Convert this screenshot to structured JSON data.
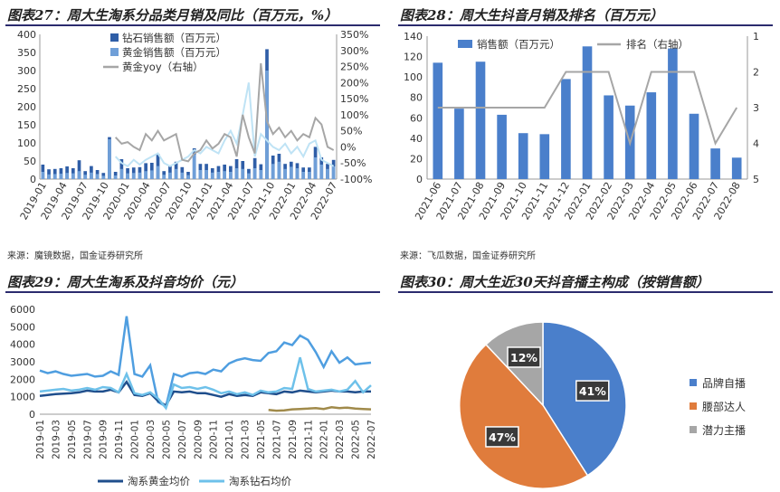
{
  "panels": {
    "p27": {
      "title": "图表27：周大生淘系分品类月销及同比（百万元，%）",
      "source": "来源：魔镜数据，国金证券研究所"
    },
    "p28": {
      "title": "图表28：周大生抖音月销及排名（百万元）",
      "source": "来源：飞瓜数据，国金证券研究所"
    },
    "p29": {
      "title": "图表29：周大生淘系及抖音均价（元）"
    },
    "p30": {
      "title": "图表30：周大生近30天抖音播主构成（按销售额）"
    }
  },
  "chart_data": [
    {
      "id": "p27",
      "type": "bar",
      "x_tick_labels": [
        "2019-01",
        "2019-04",
        "2019-07",
        "2019-10",
        "2020-01",
        "2020-04",
        "2020-07",
        "2020-10",
        "2021-01",
        "2021-04",
        "2021-07",
        "2021-10",
        "2022-01",
        "2022-04",
        "2022-07"
      ],
      "ylim": [
        0,
        400
      ],
      "y_ticks": [
        0,
        50,
        100,
        150,
        200,
        250,
        300,
        350,
        400
      ],
      "y2lim": [
        -100,
        350
      ],
      "y2_ticks": [
        "-100%",
        "-50%",
        "0%",
        "50%",
        "100%",
        "150%",
        "200%",
        "250%",
        "300%",
        "350%"
      ],
      "y2_values": [
        -100,
        -50,
        0,
        50,
        100,
        150,
        200,
        250,
        300,
        350
      ],
      "legend": [
        "钻石销售额（百万元）",
        "黄金销售额（百万元）",
        "黄金yoy（右轴）"
      ],
      "series": [
        {
          "name": "钻石销售额（百万元）",
          "color": "#2f5ea7",
          "values": [
            40,
            27,
            28,
            30,
            35,
            30,
            52,
            22,
            36,
            25,
            17,
            116,
            20,
            55,
            30,
            32,
            33,
            44,
            45,
            70,
            22,
            35,
            48,
            33,
            20,
            85,
            42,
            42,
            30,
            36,
            40,
            36,
            55,
            50,
            28,
            58,
            41,
            359,
            65,
            70,
            42,
            48,
            44,
            32,
            32,
            89,
            60,
            42,
            53
          ]
        },
        {
          "name": "黄金销售额（百万元）",
          "color": "#6f9fd8",
          "values": [
            20,
            13,
            14,
            15,
            17,
            16,
            22,
            12,
            18,
            14,
            9,
            110,
            10,
            28,
            16,
            17,
            18,
            22,
            24,
            36,
            12,
            18,
            28,
            18,
            11,
            68,
            25,
            25,
            18,
            20,
            22,
            20,
            30,
            28,
            16,
            30,
            25,
            300,
            42,
            48,
            28,
            34,
            30,
            20,
            20,
            60,
            40,
            28,
            35
          ]
        },
        {
          "name": "黄金yoy（右轴）",
          "color": "#a6a6a6",
          "axis": "right",
          "start_index": 12,
          "values": [
            30,
            10,
            15,
            0,
            -10,
            40,
            20,
            50,
            20,
            30,
            40,
            -40,
            -45,
            -20,
            -10,
            20,
            -5,
            10,
            40,
            30,
            -30,
            100,
            30,
            -20,
            260,
            80,
            40,
            60,
            30,
            50,
            20,
            40,
            30,
            90,
            70,
            0,
            -10
          ]
        },
        {
          "name": "",
          "color": "#bfe3f5",
          "axis": "right",
          "start_index": 12,
          "values": [
            -30,
            -50,
            -60,
            -40,
            -55,
            -40,
            -30,
            -20,
            -50,
            -60,
            -50,
            -40,
            -30,
            -10,
            -20,
            0,
            -10,
            -20,
            20,
            50,
            10,
            100,
            200,
            -30,
            40,
            20,
            0,
            -10,
            10,
            -20,
            0,
            -30,
            10,
            20,
            -40,
            -50,
            -60
          ]
        }
      ]
    },
    {
      "id": "p28",
      "type": "bar",
      "categories": [
        "2021-06",
        "2021-07",
        "2021-08",
        "2021-09",
        "2021-10",
        "2021-11",
        "2021-12",
        "2022-01",
        "2022-02",
        "2022-03",
        "2022-04",
        "2022-05",
        "2022-06",
        "2022-07",
        "2022-08"
      ],
      "ylim": [
        0,
        140
      ],
      "y_ticks": [
        0,
        20,
        40,
        60,
        80,
        100,
        120,
        140
      ],
      "y2lim": [
        1,
        5
      ],
      "y2_ticks": [
        1,
        2,
        3,
        4,
        5
      ],
      "y2_reversed": true,
      "legend": [
        "销售额（百万元）",
        "排名（右轴）"
      ],
      "series": [
        {
          "name": "销售额（百万元）",
          "color": "#4a7fcb",
          "values": [
            114,
            69,
            115,
            63,
            45,
            44,
            98,
            130,
            82,
            72,
            85,
            128,
            64,
            30,
            21
          ]
        },
        {
          "name": "排名（右轴）",
          "color": "#a6a6a6",
          "axis": "right",
          "values": [
            3,
            3,
            3,
            3,
            3,
            3,
            2,
            2,
            2,
            4,
            2,
            2,
            2,
            4,
            3
          ]
        }
      ]
    },
    {
      "id": "p29",
      "type": "line",
      "x_tick_labels": [
        "2019-01",
        "2019-03",
        "2019-05",
        "2019-07",
        "2019-09",
        "2019-11",
        "2020-01",
        "2020-03",
        "2020-05",
        "2020-07",
        "2020-09",
        "2020-11",
        "2021-01",
        "2021-03",
        "2021-05",
        "2021-07",
        "2021-09",
        "2021-11",
        "2022-01",
        "2022-03",
        "2022-05",
        "2022-07"
      ],
      "ylim": [
        0,
        6000
      ],
      "y_ticks": [
        0,
        1000,
        2000,
        3000,
        4000,
        5000,
        6000
      ],
      "legend": [
        "淘系黄金均价",
        "淘系钻石均价"
      ],
      "series": [
        {
          "name": "",
          "color": "#4f9ee0",
          "values": [
            2500,
            2350,
            2450,
            2300,
            2200,
            2250,
            2300,
            2150,
            2200,
            2450,
            2250,
            5600,
            2300,
            2150,
            2800,
            700,
            450,
            2300,
            2150,
            2350,
            2400,
            2300,
            2550,
            2450,
            2900,
            3100,
            3200,
            3100,
            3050,
            3500,
            3600,
            4100,
            3950,
            4500,
            4250,
            3550,
            2700,
            3600,
            2950,
            3250,
            2850,
            2900,
            2950
          ]
        },
        {
          "name": "淘系黄金均价",
          "color": "#1f4e8c",
          "values": [
            1050,
            1100,
            1150,
            1180,
            1200,
            1250,
            1350,
            1300,
            1300,
            1400,
            1250,
            1850,
            1100,
            1050,
            1200,
            750,
            500,
            1300,
            1250,
            1300,
            1200,
            1200,
            1100,
            1000,
            1150,
            1050,
            1100,
            1050,
            1250,
            1200,
            1150,
            1300,
            1250,
            1350,
            1300,
            1250,
            1300,
            1350,
            1300,
            1300,
            1250,
            1300,
            1300
          ]
        },
        {
          "name": "淘系钻石均价",
          "color": "#6ec1ea",
          "values": [
            1300,
            1350,
            1400,
            1450,
            1350,
            1400,
            1500,
            1400,
            1550,
            1500,
            1250,
            2300,
            1200,
            1100,
            1250,
            900,
            350,
            1700,
            1500,
            1550,
            1450,
            1550,
            1400,
            1200,
            1300,
            1150,
            1250,
            1100,
            1350,
            1250,
            1300,
            1500,
            1450,
            3250,
            1450,
            1300,
            1350,
            1400,
            1300,
            1400,
            1900,
            1250,
            1650
          ]
        },
        {
          "name": "",
          "color": "#a08a4a",
          "start_index": 29,
          "values": [
            250,
            200,
            220,
            280,
            300,
            320,
            350,
            300,
            400,
            350,
            380,
            320,
            300,
            280
          ]
        }
      ]
    },
    {
      "id": "p30",
      "type": "pie",
      "legend": [
        "品牌自播",
        "腰部达人",
        "潜力主播"
      ],
      "series": [
        {
          "name": "品牌自播",
          "value": 41,
          "label": "41%",
          "color": "#4a7fcb"
        },
        {
          "name": "腰部达人",
          "value": 47,
          "label": "47%",
          "color": "#e07c3c"
        },
        {
          "name": "潜力主播",
          "value": 12,
          "label": "12%",
          "color": "#a6a6a6"
        }
      ]
    }
  ]
}
